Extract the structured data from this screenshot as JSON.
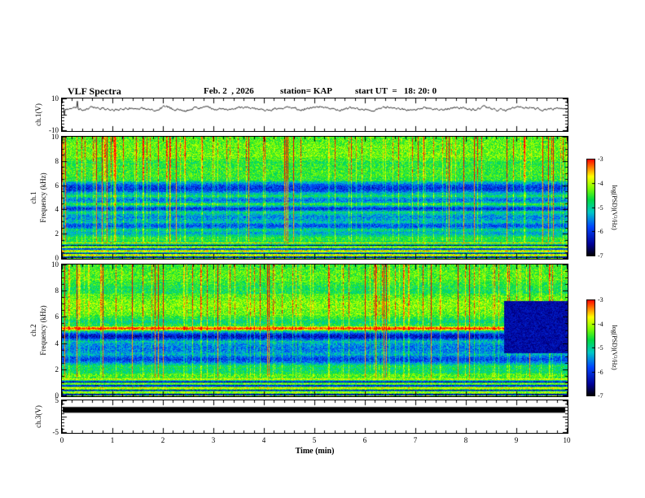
{
  "figure": {
    "title": "VLF Spectra",
    "date": "Feb. 2  , 2026",
    "station": "station= KAP",
    "start_ut": "start UT  =   18: 20: 0",
    "xlabel": "Time (min)"
  },
  "xaxis": {
    "label": "Time (min)",
    "lim": [
      0,
      10
    ],
    "ticks": [
      0,
      1,
      2,
      3,
      4,
      5,
      6,
      7,
      8,
      9,
      10
    ],
    "minor_tick_step": 0.2
  },
  "chart_data": [
    {
      "id": "ch1_waveform",
      "type": "line",
      "ylabel": "ch.1(V)",
      "ylim": [
        -10,
        10
      ],
      "yticks": [
        10,
        -10
      ],
      "xlim": [
        0,
        10
      ],
      "line_color": "#000000",
      "description": "Noisy voltage waveform fluctuating mostly between +2 and +5 V with occasional spikes",
      "profile": [
        3.5,
        4.2,
        3.0,
        4.6,
        3.8,
        2.6,
        3.2,
        4.4,
        3.6,
        2.8,
        4.8,
        3.1,
        2.3,
        3.9,
        4.5,
        3.2,
        2.7,
        4.0,
        4.7,
        3.3,
        2.5,
        3.7,
        4.2,
        2.9,
        3.8,
        5.0,
        3.4,
        2.6,
        4.3,
        3.0,
        2.4,
        3.9,
        4.6,
        3.2,
        2.8,
        4.1,
        3.5,
        2.7,
        4.4,
        3.6,
        2.9,
        4.7,
        3.1,
        2.5,
        4.0,
        4.3,
        3.4,
        2.8,
        3.7,
        3.3
      ],
      "noise_amplitude": 1.4
    },
    {
      "id": "ch1_spectrogram",
      "type": "heatmap",
      "ylabel_line1": "ch.1",
      "ylabel_line2": "Frequency (kHz)",
      "ylim": [
        0,
        10
      ],
      "yticks": [
        0,
        2,
        4,
        6,
        8,
        10
      ],
      "xlim": [
        0,
        10
      ],
      "clim": [
        -7,
        -3
      ],
      "background_level": -4.7,
      "bands": [
        {
          "f": 9.0,
          "halfwidth": 1.1,
          "level": -4.3
        },
        {
          "f": 7.2,
          "halfwidth": 0.8,
          "level": -4.5
        },
        {
          "f": 5.8,
          "halfwidth": 0.5,
          "level": -6.0
        },
        {
          "f": 4.8,
          "halfwidth": 0.25,
          "level": -5.6
        },
        {
          "f": 4.1,
          "halfwidth": 0.25,
          "level": -6.0
        },
        {
          "f": 3.4,
          "halfwidth": 0.5,
          "level": -5.5
        },
        {
          "f": 2.7,
          "halfwidth": 0.3,
          "level": -5.8
        },
        {
          "f": 2.1,
          "halfwidth": 0.25,
          "level": -5.3
        },
        {
          "f": 1.6,
          "halfwidth": 0.2,
          "level": -4.6
        }
      ],
      "low_freq_stripes": [
        {
          "f": 1.3,
          "halfwidth": 0.06,
          "level": -3.7
        },
        {
          "f": 1.1,
          "halfwidth": 0.05,
          "level": -6.6
        },
        {
          "f": 0.95,
          "halfwidth": 0.05,
          "level": -4.0
        },
        {
          "f": 0.8,
          "halfwidth": 0.05,
          "level": -6.7
        },
        {
          "f": 0.62,
          "halfwidth": 0.06,
          "level": -3.6
        },
        {
          "f": 0.45,
          "halfwidth": 0.05,
          "level": -6.6
        },
        {
          "f": 0.3,
          "halfwidth": 0.06,
          "level": -3.8
        },
        {
          "f": 0.12,
          "halfwidth": 0.07,
          "level": -6.8
        }
      ],
      "streak_density": 0.12,
      "red_streak_density": 0.025
    },
    {
      "id": "ch2_spectrogram",
      "type": "heatmap",
      "ylabel_line1": "ch.2",
      "ylabel_line2": "Frequency (kHz)",
      "ylim": [
        0,
        10
      ],
      "yticks": [
        0,
        2,
        4,
        6,
        8,
        10
      ],
      "xlim": [
        0,
        10
      ],
      "clim": [
        -7,
        -3
      ],
      "background_level": -4.6,
      "bands": [
        {
          "f": 9.3,
          "halfwidth": 0.7,
          "level": -4.4
        },
        {
          "f": 8.2,
          "halfwidth": 0.5,
          "level": -4.7
        },
        {
          "f": 6.9,
          "halfwidth": 1.0,
          "level": -4.2
        },
        {
          "f": 5.15,
          "halfwidth": 0.13,
          "level": -3.1
        },
        {
          "f": 4.55,
          "halfwidth": 0.35,
          "level": -6.3
        },
        {
          "f": 3.6,
          "halfwidth": 0.6,
          "level": -5.6
        },
        {
          "f": 2.8,
          "halfwidth": 0.4,
          "level": -5.9
        },
        {
          "f": 2.0,
          "halfwidth": 0.3,
          "level": -4.8
        },
        {
          "f": 1.6,
          "halfwidth": 0.15,
          "level": -4.4
        }
      ],
      "low_freq_stripes": [
        {
          "f": 1.3,
          "halfwidth": 0.06,
          "level": -3.8
        },
        {
          "f": 1.1,
          "halfwidth": 0.05,
          "level": -6.6
        },
        {
          "f": 0.95,
          "halfwidth": 0.05,
          "level": -4.1
        },
        {
          "f": 0.8,
          "halfwidth": 0.05,
          "level": -6.7
        },
        {
          "f": 0.62,
          "halfwidth": 0.06,
          "level": -3.6
        },
        {
          "f": 0.45,
          "halfwidth": 0.05,
          "level": -6.6
        },
        {
          "f": 0.3,
          "halfwidth": 0.06,
          "level": -3.9
        },
        {
          "f": 0.12,
          "halfwidth": 0.07,
          "level": -6.8
        }
      ],
      "dropout": {
        "t_start": 8.75,
        "f_min": 3.3,
        "f_max": 7.2,
        "level": -6.4
      },
      "streak_density": 0.12,
      "red_streak_density": 0.02
    },
    {
      "id": "ch3_level",
      "type": "line",
      "ylabel": "ch.3(V)",
      "ylim": [
        -5,
        5
      ],
      "yticks": [
        5,
        -5
      ],
      "xlim": [
        0,
        10
      ],
      "bar_value": 2,
      "bar_thickness_v": 1.8,
      "line_color": "#000000",
      "description": "Constant thick black level trace near +2 V across the whole interval"
    }
  ],
  "colorbars": [
    {
      "label": "log(PSD)(V²/Hz)",
      "tick_labels": [
        "-3",
        "-4",
        "-5",
        "-6",
        "-7"
      ],
      "range": [
        -7,
        -3
      ]
    },
    {
      "label": "log(PSD)(V²/Hz)",
      "tick_labels": [
        "-3",
        "-4",
        "-5",
        "-6",
        "-7"
      ],
      "range": [
        -7,
        -3
      ]
    }
  ],
  "palette": {
    "max_color": "#ff0000",
    "mid_color": "#00dc46",
    "min_color": "#000000",
    "trace_color": "#000000",
    "background": "#ffffff"
  }
}
